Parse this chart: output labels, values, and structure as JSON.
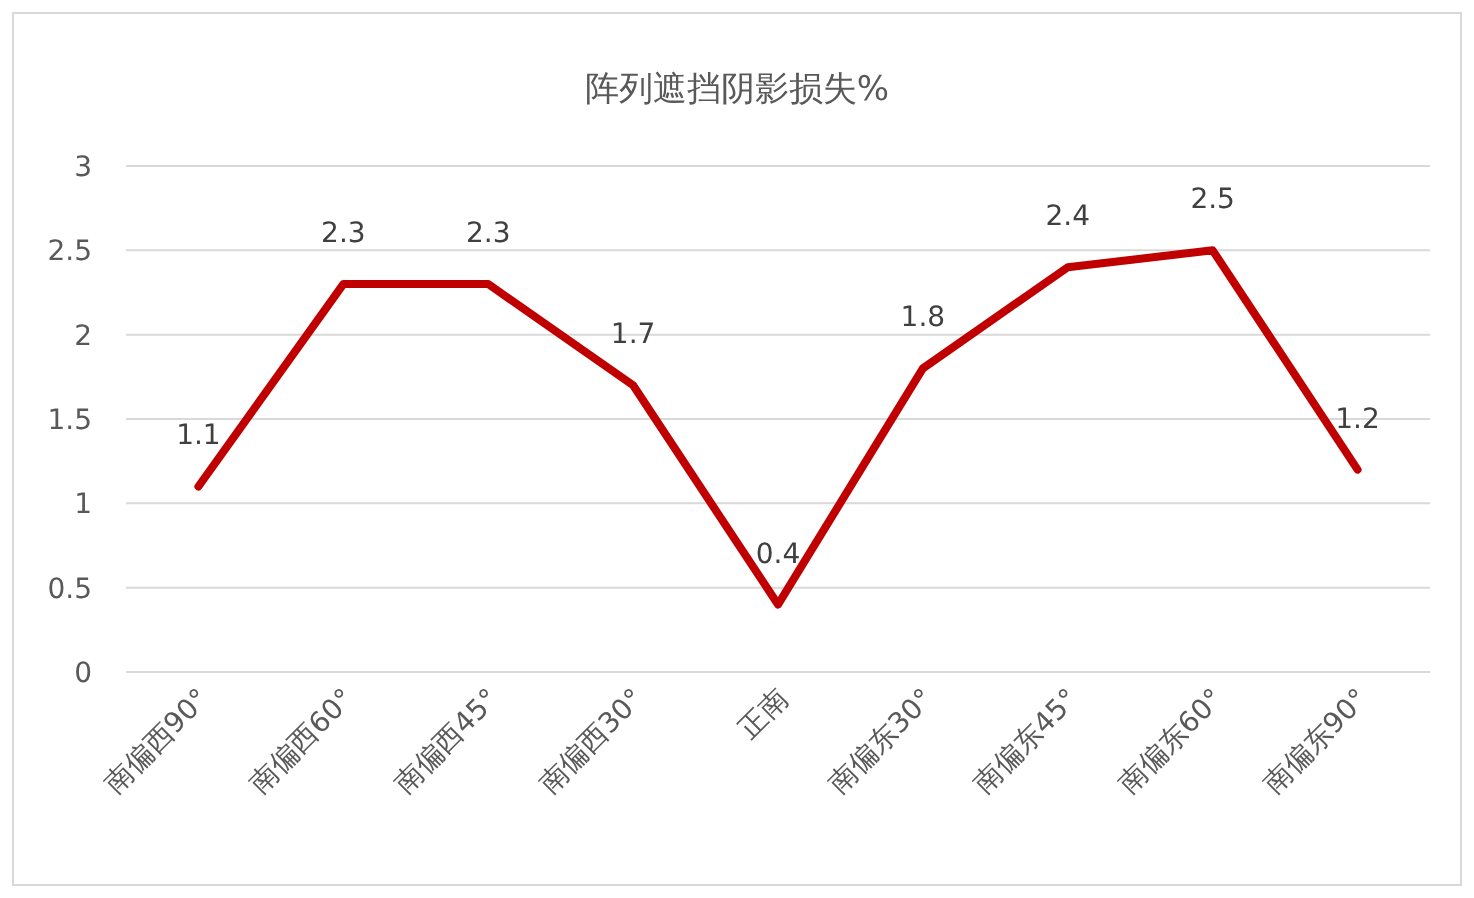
{
  "chart_data": {
    "type": "line",
    "title": "阵列遮挡阴影损失%",
    "categories": [
      "南偏西90°",
      "南偏西60°",
      "南偏西45°",
      "南偏西30°",
      "正南",
      "南偏东30°",
      "南偏东45°",
      "南偏东60°",
      "南偏东90°"
    ],
    "series": [
      {
        "color": "#c00000",
        "values": [
          1.1,
          2.3,
          2.3,
          1.7,
          0.4,
          1.8,
          2.4,
          2.5,
          1.2
        ]
      }
    ],
    "ylim": [
      0,
      3
    ],
    "yticks": [
      0,
      0.5,
      1,
      1.5,
      2,
      2.5,
      3
    ],
    "grid": "y",
    "data_labels": true,
    "marker": "none",
    "line_style": "solid"
  }
}
